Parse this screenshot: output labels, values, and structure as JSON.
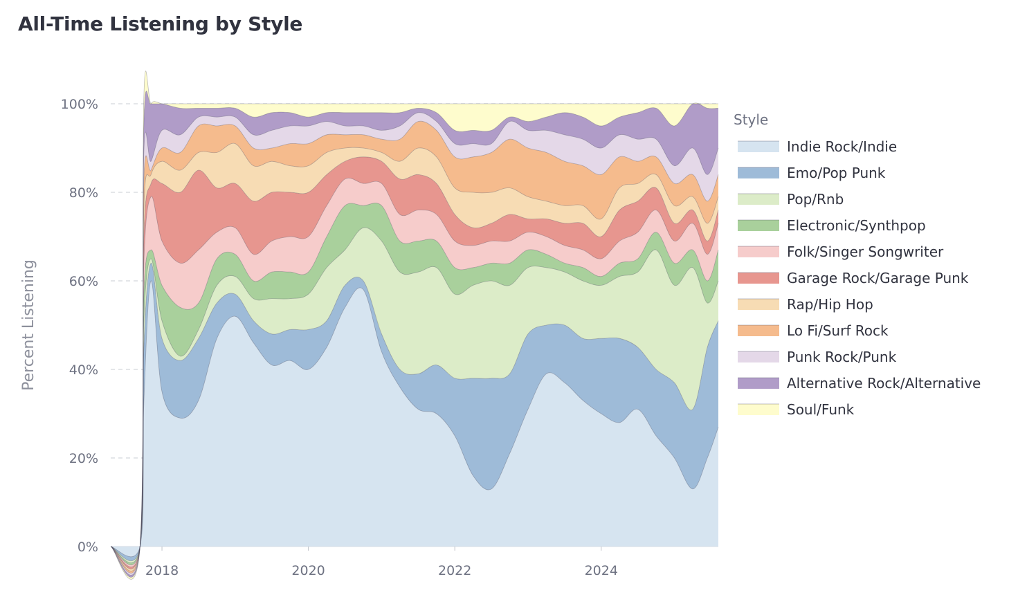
{
  "chart_data": {
    "type": "area",
    "stacked": "normalized",
    "title": "All-Time Listening by Style",
    "ylabel": "Percent Listening",
    "xlabel": "",
    "xlim": [
      2017.3,
      2025.6
    ],
    "ylim": [
      0,
      100
    ],
    "x_ticks": [
      "2018",
      "2020",
      "2022",
      "2024"
    ],
    "x_tick_values": [
      2018,
      2020,
      2022,
      2024
    ],
    "y_ticks": [
      "0%",
      "20%",
      "40%",
      "60%",
      "80%",
      "100%"
    ],
    "y_tick_values": [
      0,
      20,
      40,
      60,
      80,
      100
    ],
    "grid": "horizontal dashed",
    "legend_title": "Style",
    "legend_position": "right",
    "x": [
      2017.3,
      2017.7,
      2017.75,
      2017.85,
      2018.0,
      2018.25,
      2018.5,
      2018.75,
      2019.0,
      2019.25,
      2019.5,
      2019.75,
      2020.0,
      2020.25,
      2020.5,
      2020.75,
      2021.0,
      2021.25,
      2021.5,
      2021.75,
      2022.0,
      2022.25,
      2022.5,
      2022.75,
      2023.0,
      2023.25,
      2023.5,
      2023.75,
      2024.0,
      2024.25,
      2024.5,
      2024.75,
      2025.0,
      2025.25,
      2025.45,
      2025.6
    ],
    "series": [
      {
        "name": "Indie Rock/Indie",
        "color": "#d6e4f0",
        "values": [
          0,
          0,
          0.5,
          60,
          35,
          29,
          33,
          47,
          52,
          46,
          41,
          42,
          40,
          45,
          54,
          58,
          44,
          36,
          31,
          30,
          25,
          16,
          13,
          21,
          31,
          39,
          37,
          33,
          30,
          28,
          31,
          25,
          20,
          13,
          20,
          27
        ]
      },
      {
        "name": "Emo/Pop Punk",
        "color": "#9ebbd8",
        "values": [
          0,
          0,
          0.2,
          4,
          12,
          13,
          14,
          8,
          5,
          5,
          7,
          7,
          9,
          6,
          5,
          2,
          4,
          4,
          8,
          11,
          13,
          22,
          25,
          18,
          17,
          11,
          13,
          14,
          17,
          19,
          14,
          15,
          17,
          18,
          25,
          24
        ]
      },
      {
        "name": "Pop/Rnb",
        "color": "#dcecc8",
        "values": [
          0,
          0,
          0.1,
          1,
          4,
          1,
          2,
          4,
          4,
          5,
          8,
          7,
          8,
          12,
          8,
          12,
          21,
          22,
          23,
          22,
          19,
          21,
          22,
          20,
          15,
          13,
          12,
          13,
          12,
          14,
          17,
          27,
          22,
          32,
          10,
          9
        ]
      },
      {
        "name": "Electronic/Synthpop",
        "color": "#a9d09c",
        "values": [
          0,
          0,
          0.1,
          2,
          8,
          11,
          6,
          6,
          5,
          4,
          6,
          6,
          5,
          7,
          10,
          5,
          8,
          7,
          7,
          6,
          6,
          4,
          4,
          5,
          4,
          3,
          2,
          3,
          2,
          3,
          3,
          4,
          5,
          4,
          5,
          7
        ]
      },
      {
        "name": "Folk/Singer Songwriter",
        "color": "#f6cccb",
        "values": [
          0,
          0,
          0.1,
          12,
          10,
          10,
          12,
          6,
          6,
          6,
          7,
          8,
          8,
          7,
          6,
          5,
          5,
          6,
          7,
          6,
          6,
          5,
          5,
          5,
          4,
          4,
          4,
          4,
          4,
          5,
          6,
          5,
          5,
          6,
          6,
          6
        ]
      },
      {
        "name": "Garage Rock/Garage Punk",
        "color": "#e7968f",
        "values": [
          0,
          0,
          0.1,
          3,
          13,
          16,
          18,
          10,
          10,
          12,
          11,
          10,
          10,
          7,
          4,
          6,
          5,
          8,
          8,
          7,
          6,
          4,
          4,
          6,
          3,
          4,
          5,
          6,
          5,
          7,
          7,
          5,
          4,
          3,
          3,
          3
        ]
      },
      {
        "name": "Rap/Hip Hop",
        "color": "#f7dcb4",
        "values": [
          0,
          0,
          0.1,
          2,
          5,
          5,
          4,
          8,
          9,
          8,
          7,
          6,
          6,
          5,
          3,
          2,
          2,
          4,
          6,
          6,
          6,
          8,
          7,
          6,
          5,
          4,
          4,
          4,
          4,
          5,
          4,
          3,
          4,
          3,
          4,
          3
        ]
      },
      {
        "name": "Lo Fi/Surf Rock",
        "color": "#f5bb8d",
        "values": [
          0,
          0,
          0.1,
          1,
          3,
          4,
          6,
          6,
          4,
          4,
          3,
          5,
          5,
          4,
          3,
          3,
          3,
          5,
          6,
          6,
          7,
          8,
          9,
          11,
          11,
          11,
          10,
          9,
          10,
          7,
          5,
          4,
          5,
          5,
          5,
          5
        ]
      },
      {
        "name": "Punk Rock/Punk",
        "color": "#e4d8e8",
        "values": [
          0,
          0,
          0.1,
          2,
          4,
          4,
          2,
          2,
          2,
          3,
          4,
          4,
          4,
          3,
          2,
          2,
          2,
          3,
          2,
          2,
          3,
          3,
          2,
          4,
          4,
          5,
          6,
          6,
          6,
          5,
          5,
          4,
          4,
          6,
          6,
          6
        ]
      },
      {
        "name": "Alternative Rock/Alternative",
        "color": "#b09cc8",
        "values": [
          0,
          0,
          0.1,
          13,
          6,
          6,
          2,
          2,
          2,
          4,
          4,
          3,
          2,
          2,
          3,
          3,
          4,
          3,
          1,
          2,
          3,
          3,
          3,
          1,
          2,
          3,
          5,
          5,
          5,
          4,
          6,
          7,
          9,
          10,
          15,
          9
        ]
      },
      {
        "name": "Soul/Funk",
        "color": "#fefccd",
        "values": [
          0,
          0,
          0.1,
          0,
          0,
          1,
          1,
          1,
          1,
          3,
          2,
          2,
          3,
          2,
          2,
          2,
          2,
          2,
          1,
          2,
          6,
          6,
          6,
          3,
          4,
          3,
          2,
          3,
          5,
          3,
          2,
          1,
          5,
          0,
          1,
          1
        ]
      }
    ]
  }
}
